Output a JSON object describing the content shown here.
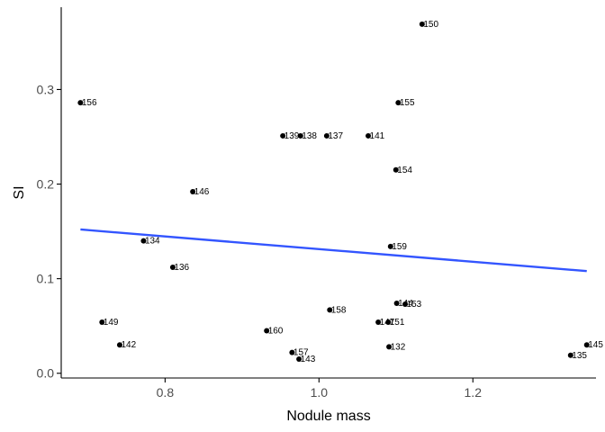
{
  "chart_data": {
    "type": "scatter",
    "title": "",
    "xlabel": "Nodule mass",
    "ylabel": "SI",
    "xlim": [
      0.665,
      1.36
    ],
    "ylim": [
      -0.005,
      0.387
    ],
    "x_ticks": [
      0.8,
      1.0,
      1.2
    ],
    "x_tick_labels": [
      "0.8",
      "1.0",
      "1.2"
    ],
    "y_ticks": [
      0.0,
      0.1,
      0.2,
      0.3
    ],
    "y_tick_labels": [
      "0.0",
      "0.1",
      "0.2",
      "0.3"
    ],
    "grid": false,
    "legend": "none",
    "point_color": "#000000",
    "trend_color": "#3355ff",
    "points": [
      {
        "label": "150",
        "x": 1.134,
        "y": 0.369
      },
      {
        "label": "156",
        "x": 0.69,
        "y": 0.286
      },
      {
        "label": "155",
        "x": 1.103,
        "y": 0.286
      },
      {
        "label": "139",
        "x": 0.953,
        "y": 0.251
      },
      {
        "label": "138",
        "x": 0.976,
        "y": 0.251
      },
      {
        "label": "137",
        "x": 1.01,
        "y": 0.251
      },
      {
        "label": "141",
        "x": 1.064,
        "y": 0.251
      },
      {
        "label": "154",
        "x": 1.1,
        "y": 0.215
      },
      {
        "label": "146",
        "x": 0.836,
        "y": 0.192
      },
      {
        "label": "134",
        "x": 0.772,
        "y": 0.14
      },
      {
        "label": "159",
        "x": 1.093,
        "y": 0.134
      },
      {
        "label": "136",
        "x": 0.81,
        "y": 0.112
      },
      {
        "label": "144",
        "x": 1.101,
        "y": 0.074
      },
      {
        "label": "153",
        "x": 1.112,
        "y": 0.073
      },
      {
        "label": "158",
        "x": 1.014,
        "y": 0.067
      },
      {
        "label": "147",
        "x": 1.077,
        "y": 0.054
      },
      {
        "label": "151",
        "x": 1.09,
        "y": 0.054
      },
      {
        "label": "149",
        "x": 0.718,
        "y": 0.054
      },
      {
        "label": "160",
        "x": 0.932,
        "y": 0.045
      },
      {
        "label": "142",
        "x": 0.741,
        "y": 0.03
      },
      {
        "label": "132",
        "x": 1.091,
        "y": 0.028
      },
      {
        "label": "145",
        "x": 1.348,
        "y": 0.03
      },
      {
        "label": "157",
        "x": 0.965,
        "y": 0.022
      },
      {
        "label": "135",
        "x": 1.327,
        "y": 0.019
      },
      {
        "label": "143",
        "x": 0.974,
        "y": 0.015
      }
    ],
    "trend_line": {
      "x": [
        0.69,
        1.348
      ],
      "y": [
        0.152,
        0.108
      ]
    }
  }
}
